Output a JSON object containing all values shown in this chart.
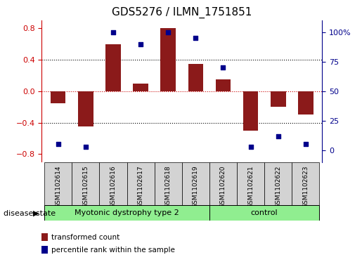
{
  "title": "GDS5276 / ILMN_1751851",
  "samples": [
    "GSM1102614",
    "GSM1102615",
    "GSM1102616",
    "GSM1102617",
    "GSM1102618",
    "GSM1102619",
    "GSM1102620",
    "GSM1102621",
    "GSM1102622",
    "GSM1102623"
  ],
  "transformed_count": [
    -0.15,
    -0.45,
    0.6,
    0.1,
    0.8,
    0.35,
    0.15,
    -0.5,
    -0.2,
    -0.3
  ],
  "percentile_rank": [
    5,
    3,
    100,
    90,
    100,
    95,
    70,
    3,
    12,
    5
  ],
  "bar_color": "#8B1A1A",
  "dot_color": "#00008B",
  "ylim_left": [
    -0.9,
    0.9
  ],
  "ylim_right": [
    -10,
    110
  ],
  "yticks_left": [
    -0.8,
    -0.4,
    0.0,
    0.4,
    0.8
  ],
  "yticks_right": [
    0,
    25,
    50,
    75,
    100
  ],
  "ytick_labels_right": [
    "0",
    "25",
    "50",
    "75",
    "100%"
  ],
  "groups": [
    {
      "label": "Myotonic dystrophy type 2",
      "n_samples": 6,
      "color": "#90EE90"
    },
    {
      "label": "control",
      "n_samples": 4,
      "color": "#90EE90"
    }
  ],
  "disease_state_label": "disease state",
  "legend_items": [
    {
      "label": "transformed count",
      "color": "#8B1A1A"
    },
    {
      "label": "percentile rank within the sample",
      "color": "#00008B"
    }
  ],
  "background_color": "#ffffff",
  "bar_width": 0.55,
  "zero_line_color": "#CC0000",
  "title_fontsize": 11,
  "label_fontsize": 7.5,
  "cell_color": "#D3D3D3"
}
